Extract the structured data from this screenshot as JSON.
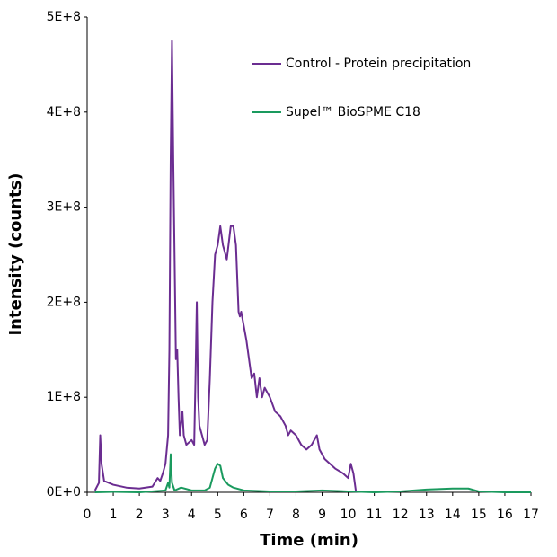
{
  "chart_data": {
    "type": "line",
    "x_label": "Time (min)",
    "y_label": "Intensity (counts)",
    "xlim": [
      0,
      17
    ],
    "xticks": [
      0,
      1,
      2,
      3,
      4,
      5,
      6,
      7,
      8,
      9,
      10,
      11,
      12,
      13,
      14,
      15,
      16,
      17
    ],
    "ylim": [
      0,
      500000000
    ],
    "yticks": [
      {
        "value": 0,
        "label": "0E+0"
      },
      {
        "value": 100000000,
        "label": "1E+8"
      },
      {
        "value": 200000000,
        "label": "2E+8"
      },
      {
        "value": 300000000,
        "label": "3E+8"
      },
      {
        "value": 400000000,
        "label": "4E+8"
      },
      {
        "value": 500000000,
        "label": "5E+8"
      }
    ],
    "grid": false,
    "legend": "top-right",
    "series": [
      {
        "name": "Control - Protein precipitation",
        "color": "#6b2d91",
        "x": [
          0.3,
          0.45,
          0.5,
          0.55,
          0.65,
          1,
          1.5,
          2,
          2.5,
          2.7,
          2.8,
          2.9,
          3.0,
          3.1,
          3.15,
          3.2,
          3.25,
          3.3,
          3.4,
          3.45,
          3.5,
          3.55,
          3.65,
          3.7,
          3.8,
          4.0,
          4.1,
          4.15,
          4.2,
          4.25,
          4.3,
          4.4,
          4.5,
          4.6,
          4.7,
          4.8,
          4.9,
          5.0,
          5.1,
          5.2,
          5.35,
          5.5,
          5.6,
          5.7,
          5.8,
          5.85,
          5.9,
          6.0,
          6.1,
          6.2,
          6.3,
          6.4,
          6.5,
          6.6,
          6.7,
          6.8,
          7.0,
          7.2,
          7.4,
          7.6,
          7.7,
          7.8,
          8.0,
          8.2,
          8.4,
          8.6,
          8.8,
          8.9,
          9.1,
          9.3,
          9.5,
          9.8,
          10.0,
          10.1,
          10.2,
          10.3
        ],
        "values": [
          2000000,
          10000000,
          60000000,
          30000000,
          12000000,
          8000000,
          5000000,
          4000000,
          6000000,
          15000000,
          12000000,
          20000000,
          30000000,
          60000000,
          150000000,
          350000000,
          475000000,
          350000000,
          140000000,
          150000000,
          100000000,
          60000000,
          85000000,
          60000000,
          50000000,
          55000000,
          50000000,
          120000000,
          200000000,
          100000000,
          70000000,
          60000000,
          50000000,
          55000000,
          120000000,
          200000000,
          250000000,
          260000000,
          280000000,
          260000000,
          245000000,
          280000000,
          280000000,
          260000000,
          190000000,
          185000000,
          190000000,
          175000000,
          160000000,
          140000000,
          120000000,
          125000000,
          100000000,
          120000000,
          100000000,
          110000000,
          100000000,
          85000000,
          80000000,
          70000000,
          60000000,
          65000000,
          60000000,
          50000000,
          45000000,
          50000000,
          60000000,
          45000000,
          35000000,
          30000000,
          25000000,
          20000000,
          15000000,
          30000000,
          20000000,
          0
        ]
      },
      {
        "name": "Supel™ BioSPME C18",
        "color": "#1a9a5e",
        "x": [
          0.3,
          1,
          2,
          3.0,
          3.1,
          3.15,
          3.2,
          3.25,
          3.35,
          3.6,
          4,
          4.5,
          4.7,
          4.8,
          4.9,
          5.0,
          5.1,
          5.2,
          5.4,
          5.6,
          6,
          7,
          8,
          9,
          10,
          11,
          12,
          13,
          14,
          14.6,
          15,
          16,
          17
        ],
        "values": [
          0,
          500000,
          0,
          2000000,
          10000000,
          5000000,
          40000000,
          10000000,
          2000000,
          5000000,
          2000000,
          2000000,
          5000000,
          15000000,
          25000000,
          30000000,
          28000000,
          15000000,
          8000000,
          5000000,
          2000000,
          1000000,
          1000000,
          2000000,
          1000000,
          0,
          1000000,
          3000000,
          4000000,
          4000000,
          1000000,
          0,
          0
        ]
      }
    ]
  }
}
